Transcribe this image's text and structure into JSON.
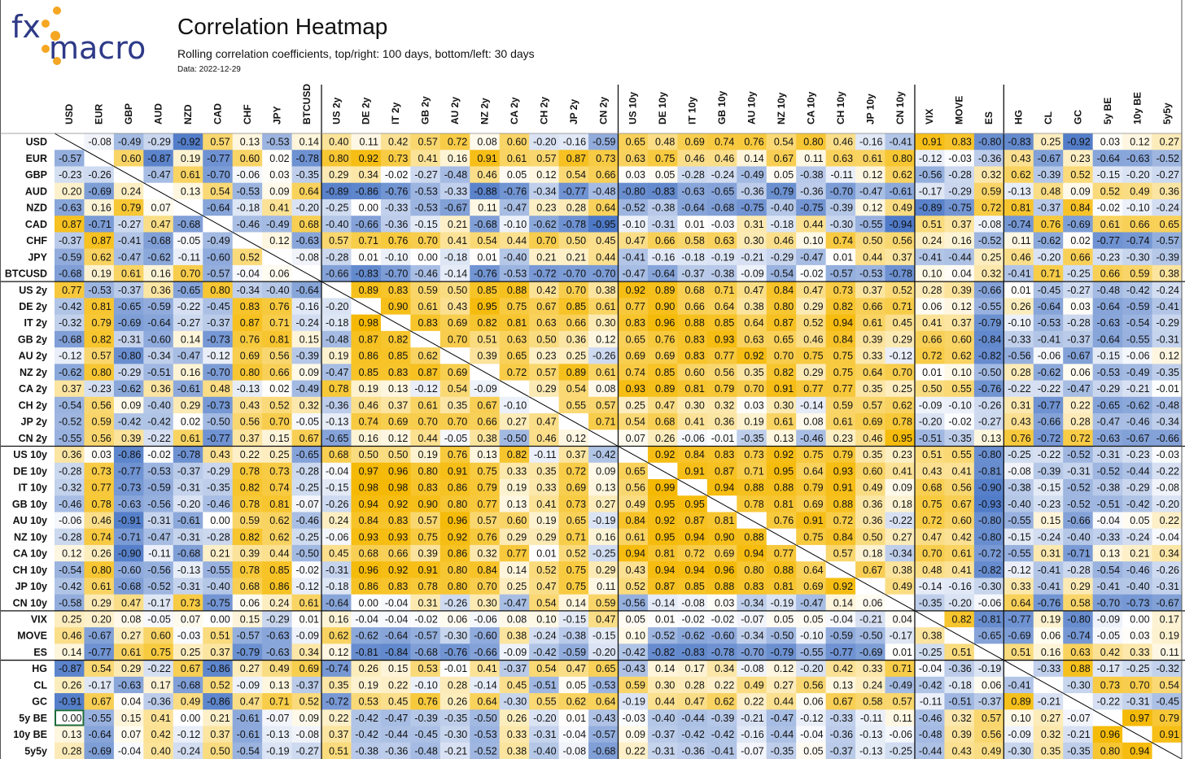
{
  "header": {
    "logo": "fxmacro",
    "title": "Correlation Heatmap",
    "subtitle": "Rolling correlation coefficients, top/right: 100 days, bottom/left: 30 days",
    "date_label": "Data: 2022-12-29"
  },
  "colors": {
    "negative": "#4472C4",
    "neutral": "#FFFFFF",
    "positive": "#F5B800",
    "logo_accent": "#F5A623",
    "logo_text": "#2E3A87"
  },
  "chart_data": {
    "type": "heatmap",
    "title": "Correlation Heatmap",
    "labels": [
      "USD",
      "EUR",
      "GBP",
      "AUD",
      "NZD",
      "CAD",
      "CHF",
      "JPY",
      "BTCUSD",
      "US 2y",
      "DE 2y",
      "IT 2y",
      "GB 2y",
      "AU 2y",
      "NZ 2y",
      "CA 2y",
      "CH 2y",
      "JP 2y",
      "CN 2y",
      "US 10y",
      "DE 10y",
      "IT 10y",
      "GB 10y",
      "AU 10y",
      "NZ 10y",
      "CA 10y",
      "CH 10y",
      "JP 10y",
      "CN 10y",
      "VIX",
      "MOVE",
      "ES",
      "HG",
      "CL",
      "GC",
      "5y BE",
      "10y BE",
      "5y5y"
    ],
    "group_breaks_after": [
      8,
      18,
      28,
      31
    ],
    "value_range": [
      -1,
      1
    ],
    "matrix": [
      "  | -0.08 -0.49 -0.29 -0.92 0.57 0.13 -0.53 0.14 0.40 0.11 0.42 0.57 0.72 0.08 0.60 -0.20 -0.16 -0.59 0.65 0.48 0.69 0.74 0.76 0.54 0.80 0.46 -0.16 -0.41 0.91 0.83 -0.80 -0.83 0.25 -0.92 0.03 0.12 0.27",
      "-0.57 | 0.60 -0.87 0.19 -0.77 0.60 0.02 -0.78 0.80 0.92 0.73 0.41 0.16 0.91 0.61 0.57 0.87 0.73 0.63 0.75 0.46 0.46 0.14 0.67 0.11 0.63 0.61 0.80 -0.12 -0.03 -0.36 0.43 -0.67 0.23 -0.64 -0.63 -0.52",
      "-0.23 -0.26 | -0.47 0.61 -0.70 -0.06 0.03 -0.35 0.29 0.34 -0.02 -0.27 -0.48 0.46 0.05 0.12 0.54 0.66 0.03 0.05 -0.28 -0.24 -0.49 0.05 -0.38 -0.11 0.12 0.62 -0.56 -0.28 0.32 0.62 -0.39 0.52 -0.15 -0.20 -0.27",
      "0.20 -0.69 0.24 | 0.13 0.54 -0.53 0.09 0.64 -0.89 -0.86 -0.76 -0.53 -0.33 -0.88 -0.76 -0.34 -0.77 -0.48 -0.80 -0.83 -0.63 -0.65 -0.36 -0.79 -0.36 -0.70 -0.47 -0.61 -0.17 -0.29 0.59 -0.13 0.48 0.09 0.52 0.49 0.36",
      "-0.63 0.16 0.79 0.07 | -0.64 -0.18 0.41 -0.20 -0.25 0.00 -0.33 -0.53 -0.67 0.11 -0.47 0.23 0.28 0.64 -0.52 -0.38 -0.64 -0.68 -0.75 -0.40 -0.75 -0.39 0.12 0.49 -0.89 -0.75 0.72 0.81 -0.37 0.84 -0.02 -0.10 -0.24",
      "0.87 -0.71 -0.27 0.47 -0.68 | -0.46 -0.49 0.68 -0.40 -0.66 -0.36 -0.15 0.21 -0.68 -0.10 -0.62 -0.78 -0.95 -0.10 -0.31 0.01 -0.03 0.31 -0.18 0.44 -0.30 -0.55 -0.94 0.51 0.37 -0.08 -0.74 0.76 -0.69 0.61 0.66 0.65",
      "-0.37 0.87 -0.41 -0.68 -0.05 -0.49 | 0.12 -0.63 0.57 0.71 0.76 0.70 0.41 0.54 0.44 0.70 0.50 0.45 0.47 0.66 0.58 0.63 0.30 0.46 0.10 0.74 0.50 0.56 0.24 0.16 -0.52 0.11 -0.62 0.02 -0.77 -0.74 -0.57",
      "-0.59 0.62 -0.47 -0.62 -0.11 -0.60 0.52 | -0.08 -0.28 0.01 -0.10 0.00 -0.18 0.01 -0.40 0.21 0.21 0.44 -0.41 -0.16 -0.18 -0.19 -0.21 -0.29 -0.47 0.01 0.44 0.37 -0.41 -0.44 0.25 0.46 -0.20 0.66 -0.23 -0.30 -0.39",
      "-0.68 0.19 0.61 0.16 0.70 -0.57 -0.04 0.06 | -0.66 -0.83 -0.70 -0.46 -0.14 -0.76 -0.53 -0.72 -0.70 -0.70 -0.47 -0.64 -0.37 -0.38 -0.09 -0.54 -0.02 -0.57 -0.53 -0.78 0.10 0.04 0.32 -0.41 0.71 -0.25 0.66 0.59 0.38",
      "0.77 -0.53 -0.37 0.36 -0.65 0.80 -0.34 -0.40 -0.64 | 0.89 0.83 0.59 0.50 0.85 0.88 0.42 0.70 0.38 0.92 0.89 0.68 0.71 0.47 0.84 0.47 0.73 0.37 0.52 0.28 0.39 -0.66 0.01 -0.45 -0.27 -0.48 -0.42 -0.24",
      "-0.42 0.81 -0.65 -0.59 -0.22 -0.45 0.83 0.76 -0.16 -0.20 | 0.90 0.61 0.43 0.95 0.75 0.67 0.85 0.61 0.77 0.90 0.66 0.64 0.38 0.80 0.29 0.82 0.66 0.71 0.06 0.12 -0.55 0.26 -0.64 0.03 -0.64 -0.59 -0.41",
      "-0.32 0.79 -0.69 -0.64 -0.27 -0.37 0.87 0.71 -0.24 -0.18 0.98 | 0.83 0.69 0.82 0.81 0.63 0.66 0.30 0.83 0.96 0.88 0.85 0.64 0.87 0.52 0.94 0.61 0.45 0.41 0.37 -0.79 -0.10 -0.53 -0.28 -0.63 -0.54 -0.29",
      "-0.68 0.82 -0.31 -0.60 0.14 -0.73 0.76 0.81 0.15 -0.48 0.87 0.82 | 0.70 0.51 0.63 0.50 0.36 0.12 0.65 0.76 0.83 0.93 0.63 0.65 0.46 0.84 0.39 0.29 0.66 0.60 -0.84 -0.33 -0.41 -0.37 -0.64 -0.55 -0.31",
      "-0.12 0.57 -0.80 -0.34 -0.47 -0.12 0.69 0.56 -0.39 0.19 0.86 0.85 0.62 | 0.39 0.65 0.23 0.25 -0.26 0.69 0.69 0.83 0.77 0.92 0.70 0.75 0.75 0.33 -0.12 0.72 0.62 -0.82 -0.56 -0.06 -0.67 -0.15 -0.06 0.12",
      "-0.62 0.80 -0.29 -0.51 0.16 -0.70 0.80 0.66 0.09 -0.47 0.85 0.83 0.87 0.69 | 0.72 0.57 0.89 0.61 0.74 0.85 0.60 0.56 0.35 0.82 0.29 0.75 0.64 0.70 0.01 0.10 -0.50 0.28 -0.62 0.06 -0.53 -0.49 -0.35",
      "0.37 -0.23 -0.62 0.36 -0.61 0.48 -0.13 0.02 -0.49 0.78 0.19 0.13 -0.12 0.54 -0.09 | 0.29 0.54 0.08 0.93 0.89 0.81 0.79 0.70 0.91 0.77 0.77 0.35 0.25 0.50 0.55 -0.76 -0.22 -0.22 -0.47 -0.29 -0.21 -0.01",
      "-0.54 0.56 0.09 -0.40 0.29 -0.73 0.43 0.52 0.32 -0.36 0.46 0.37 0.61 0.35 0.67 -0.10 | 0.55 0.57 0.25 0.47 0.30 0.32 0.03 0.30 -0.14 0.59 0.57 0.62 -0.09 -0.10 -0.26 0.31 -0.77 0.22 -0.65 -0.62 -0.48",
      "-0.52 0.59 -0.42 -0.42 0.02 -0.50 0.56 0.70 -0.05 -0.13 0.74 0.69 0.70 0.70 0.66 0.27 0.47 | 0.71 0.54 0.68 0.41 0.36 0.19 0.61 0.08 0.61 0.69 0.78 -0.20 -0.02 -0.27 0.43 -0.66 0.28 -0.47 -0.46 -0.34",
      "-0.55 0.56 0.39 -0.22 0.61 -0.77 0.37 0.15 0.67 -0.65 0.16 0.12 0.44 -0.05 0.38 -0.50 0.46 0.12 | 0.07 0.26 -0.06 -0.01 -0.35 0.13 -0.46 0.23 0.46 0.95 -0.51 -0.35 0.13 0.76 -0.72 0.72 -0.63 -0.67 -0.66",
      "0.36 0.03 -0.86 -0.02 -0.78 0.43 0.22 0.25 -0.65 0.68 0.50 0.50 0.19 0.76 0.13 0.82 -0.11 0.37 -0.42 | 0.92 0.84 0.83 0.73 0.92 0.75 0.79 0.35 0.23 0.51 0.55 -0.80 -0.25 -0.22 -0.52 -0.31 -0.23 -0.03",
      "-0.28 0.73 -0.77 -0.53 -0.37 -0.29 0.78 0.73 -0.28 -0.04 0.97 0.96 0.80 0.91 0.75 0.33 0.35 0.72 0.09 0.65 | 0.91 0.87 0.71 0.95 0.64 0.93 0.60 0.41 0.43 0.41 -0.81 -0.08 -0.39 -0.31 -0.52 -0.44 -0.22",
      "-0.32 0.77 -0.73 -0.59 -0.31 -0.35 0.82 0.74 -0.25 -0.15 0.98 0.98 0.83 0.86 0.79 0.19 0.33 0.69 0.13 0.56 0.99 | 0.94 0.88 0.88 0.79 0.91 0.49 0.09 0.68 0.56 -0.90 -0.38 -0.15 -0.52 -0.38 -0.29 -0.08",
      "-0.46 0.78 -0.63 -0.56 -0.20 -0.46 0.78 0.81 -0.07 -0.26 0.94 0.92 0.90 0.80 0.77 0.13 0.41 0.73 0.27 0.49 0.95 0.95 | 0.78 0.81 0.69 0.88 0.36 0.18 0.75 0.67 -0.93 -0.40 -0.23 -0.52 -0.51 -0.42 -0.20",
      "-0.06 0.46 -0.91 -0.31 -0.61 0.00 0.59 0.62 -0.46 0.24 0.84 0.83 0.57 0.96 0.57 0.60 0.19 0.65 -0.19 0.84 0.92 0.87 0.81 | 0.76 0.91 0.72 0.36 -0.22 0.72 0.60 -0.80 -0.55 0.15 -0.66 -0.04 0.05 0.22",
      "-0.28 0.74 -0.71 -0.47 -0.31 -0.28 0.82 0.62 -0.25 -0.06 0.93 0.93 0.75 0.92 0.76 0.29 0.29 0.71 0.16 0.61 0.95 0.94 0.90 0.88 | 0.75 0.84 0.50 0.27 0.47 0.42 -0.80 -0.15 -0.24 -0.40 -0.33 -0.24 -0.04",
      "0.12 0.26 -0.90 -0.11 -0.68 0.21 0.39 0.44 -0.50 0.45 0.68 0.66 0.39 0.86 0.32 0.77 0.01 0.52 -0.25 0.94 0.81 0.72 0.69 0.94 0.77 | 0.57 0.18 -0.34 0.70 0.61 -0.72 -0.55 0.31 -0.71 0.13 0.21 0.34",
      "-0.54 0.80 -0.60 -0.56 -0.13 -0.55 0.78 0.85 -0.02 -0.31 0.96 0.92 0.91 0.80 0.84 0.14 0.52 0.75 0.29 0.43 0.94 0.94 0.96 0.80 0.88 0.64 | 0.67 0.38 0.48 0.41 -0.82 -0.12 -0.41 -0.28 -0.54 -0.46 -0.26",
      "-0.42 0.61 -0.68 -0.52 -0.31 -0.40 0.68 0.86 -0.12 -0.18 0.86 0.83 0.78 0.80 0.70 0.25 0.47 0.75 0.11 0.52 0.87 0.85 0.88 0.83 0.81 0.69 0.92 | 0.49 -0.14 -0.16 -0.30 0.33 -0.41 0.29 -0.41 -0.40 -0.31",
      "-0.58 0.29 0.47 -0.17 0.73 -0.75 0.06 0.24 0.61 -0.64 0.00 -0.04 0.31 -0.26 0.30 -0.47 0.54 0.14 0.59 -0.56 -0.14 -0.08 0.03 -0.34 -0.19 -0.47 0.14 0.06 | -0.35 -0.20 -0.06 0.64 -0.76 0.58 -0.70 -0.73 -0.67",
      "0.25 0.20 0.08 -0.05 0.07 0.00 0.15 -0.29 0.01 0.16 -0.04 -0.04 -0.02 0.06 -0.06 0.08 0.10 -0.15 0.47 0.05 0.01 -0.02 -0.02 -0.07 0.05 0.05 -0.04 -0.21 0.04 | 0.82 -0.81 -0.77 0.19 -0.80 -0.09 0.00 0.17",
      "0.46 -0.67 0.27 0.60 -0.03 0.51 -0.57 -0.63 -0.09 0.62 -0.62 -0.64 -0.57 -0.30 -0.60 0.38 -0.24 -0.38 -0.15 0.10 -0.52 -0.62 -0.60 -0.34 -0.50 -0.10 -0.59 -0.50 -0.17 0.38 | -0.65 -0.69 0.06 -0.74 -0.05 0.03 0.19",
      "0.14 -0.77 0.61 0.75 0.25 0.37 -0.79 -0.63 0.34 0.12 -0.81 -0.84 -0.68 -0.76 -0.66 -0.09 -0.42 -0.59 -0.20 -0.42 -0.82 -0.83 -0.78 -0.70 -0.79 -0.55 -0.77 -0.69 0.01 -0.25 0.51 | 0.51 0.16 0.63 0.42 0.33 0.11",
      "-0.87 0.54 0.29 -0.22 0.67 -0.86 0.27 0.49 0.69 -0.74 0.26 0.15 0.53 -0.01 0.41 -0.37 0.54 0.47 0.65 -0.43 0.14 0.17 0.34 -0.08 0.12 -0.20 0.42 0.33 0.71 -0.04 -0.36 -0.19 | -0.33 0.88 -0.17 -0.25 -0.32",
      "0.26 -0.17 -0.63 0.17 -0.68 0.52 -0.09 0.13 -0.37 0.35 0.19 0.22 -0.10 0.28 -0.14 0.45 -0.51 0.05 -0.53 0.59 0.30 0.28 0.22 0.49 0.27 0.56 0.13 0.24 -0.49 -0.42 -0.18 0.06 -0.41 | -0.30 0.73 0.70 0.54",
      "-0.91 0.67 0.04 -0.36 0.49 -0.86 0.47 0.71 0.52 -0.72 0.53 0.45 0.76 0.26 0.64 -0.30 0.55 0.62 0.64 -0.19 0.44 0.47 0.62 0.22 0.44 0.06 0.67 0.58 0.57 -0.11 -0.51 -0.37 0.89 -0.21 | -0.22 -0.31 -0.45",
      "0.00 -0.55 0.15 0.41 0.00 0.21 -0.61 -0.07 0.09 0.22 -0.42 -0.47 -0.39 -0.35 -0.50 0.26 -0.20 0.01 -0.43 -0.03 -0.40 -0.44 -0.39 -0.21 -0.47 -0.12 -0.33 -0.11 0.11 -0.46 0.32 0.57 0.10 0.27 -0.07 | 0.97 0.79",
      "0.13 -0.64 0.07 0.42 -0.12 0.37 -0.61 -0.13 -0.08 0.37 -0.42 -0.44 -0.45 -0.30 -0.53 0.33 -0.31 -0.04 -0.57 0.09 -0.37 -0.42 -0.42 -0.16 -0.44 -0.04 -0.36 -0.13 -0.06 -0.48 0.39 0.56 -0.09 0.32 -0.21 0.96 | 0.91",
      "0.28 -0.69 -0.04 0.40 -0.24 0.50 -0.54 -0.19 -0.27 0.51 -0.38 -0.36 -0.48 -0.21 -0.52 0.38 -0.40 -0.08 -0.68 0.22 -0.31 -0.36 -0.41 -0.07 -0.35 0.05 -0.37 -0.13 -0.25 -0.44 0.43 0.49 -0.30 0.35 -0.35 0.80 0.94 |"
    ]
  }
}
